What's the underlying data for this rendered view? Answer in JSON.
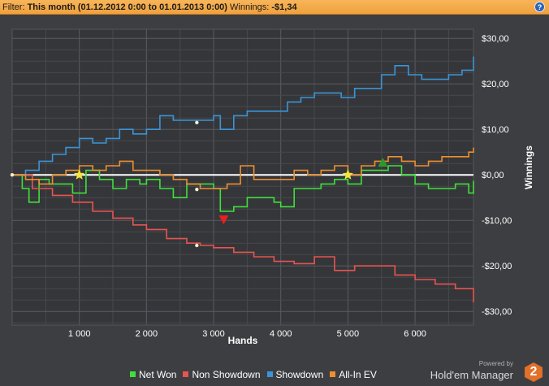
{
  "filter_bar": {
    "filter_label": "Filter:",
    "filter_value": "This month (01.12.2012 0:00 to 01.01.2013 0:00)",
    "winnings_label": "Winnings:",
    "winnings_value": "-$1,34",
    "help_icon": "?"
  },
  "chart_data": {
    "type": "line",
    "xlabel": "Hands",
    "ylabel": "Winnings",
    "xlim": [
      0,
      6870
    ],
    "ylim": [
      -33,
      32
    ],
    "x_ticks": [
      1000,
      2000,
      3000,
      4000,
      5000,
      6000
    ],
    "x_tick_labels": [
      "1 000",
      "2 000",
      "3 000",
      "4 000",
      "5 000",
      "6 000"
    ],
    "y_ticks": [
      30,
      20,
      10,
      0,
      -10,
      -20,
      -30
    ],
    "y_tick_labels": [
      "$30,00",
      "$20,00",
      "$10,00",
      "$0,00",
      "-$10,00",
      "-$20,00",
      "-$30,00"
    ],
    "grid": true,
    "legend_position": "bottom",
    "series": [
      {
        "name": "Net Won",
        "color": "#3fe03a",
        "x": [
          0,
          150,
          250,
          400,
          550,
          700,
          900,
          1100,
          1300,
          1500,
          1700,
          1900,
          2000,
          2200,
          2400,
          2600,
          2800,
          3000,
          3100,
          3300,
          3500,
          3700,
          3900,
          4000,
          4200,
          4400,
          4600,
          4800,
          5000,
          5200,
          5400,
          5600,
          5800,
          6000,
          6200,
          6400,
          6600,
          6800,
          6870
        ],
        "values": [
          0,
          -3,
          -6,
          -1,
          -2,
          -2,
          -4,
          1,
          -1,
          -3,
          -1,
          -2,
          -1,
          -3,
          -5,
          -2,
          -2,
          -3,
          -8,
          -7,
          -5,
          -5,
          -6,
          -7,
          -3,
          -3,
          -2,
          -1,
          -2,
          1,
          1,
          2,
          0,
          -2,
          -3,
          -3,
          -2,
          -4,
          -1.3
        ]
      },
      {
        "name": "Non Showdown",
        "color": "#e85450",
        "x": [
          0,
          300,
          600,
          900,
          1200,
          1500,
          1800,
          2000,
          2300,
          2600,
          2800,
          3000,
          3300,
          3600,
          3900,
          4200,
          4500,
          4800,
          5100,
          5400,
          5700,
          6000,
          6300,
          6600,
          6870
        ],
        "values": [
          0,
          -3,
          -4.5,
          -6,
          -8,
          -9.5,
          -11,
          -12,
          -14,
          -15,
          -15.5,
          -16,
          -17,
          -18,
          -19,
          -19.5,
          -18,
          -21,
          -20,
          -20,
          -22,
          -23,
          -24,
          -25,
          -28
        ]
      },
      {
        "name": "Showdown",
        "color": "#3a95d6",
        "x": [
          0,
          200,
          400,
          600,
          800,
          1000,
          1200,
          1400,
          1600,
          1800,
          2000,
          2200,
          2400,
          2600,
          2800,
          3000,
          3100,
          3300,
          3500,
          3700,
          3900,
          4100,
          4300,
          4500,
          4700,
          4900,
          5100,
          5300,
          5500,
          5700,
          5900,
          6100,
          6300,
          6500,
          6700,
          6870
        ],
        "values": [
          0,
          1,
          3,
          4.5,
          6,
          8,
          7,
          8,
          10,
          9,
          10,
          13,
          12,
          12,
          12,
          13,
          10,
          13,
          14,
          14,
          14,
          16,
          17,
          18,
          18,
          17,
          19,
          19,
          22,
          24,
          22,
          21,
          21,
          22,
          23,
          26
        ]
      },
      {
        "name": "All-In EV",
        "color": "#ee8f2e",
        "x": [
          0,
          200,
          400,
          600,
          800,
          1000,
          1200,
          1400,
          1600,
          1800,
          2000,
          2200,
          2400,
          2600,
          2800,
          3000,
          3200,
          3400,
          3600,
          3800,
          4000,
          4200,
          4400,
          4600,
          4800,
          5000,
          5200,
          5400,
          5600,
          5800,
          6000,
          6200,
          6400,
          6600,
          6800,
          6870
        ],
        "values": [
          0,
          -1,
          -2,
          0,
          1,
          2,
          1,
          2,
          3,
          1,
          1,
          0,
          -1,
          -2,
          -3,
          -3,
          -2,
          2,
          -1,
          -1,
          -1,
          1,
          0,
          1,
          2,
          0,
          2,
          3,
          4,
          3,
          2,
          3,
          4,
          4,
          5,
          6
        ]
      }
    ],
    "markers": [
      {
        "kind": "star",
        "x": 1000,
        "y": 0,
        "color": "#f5e43a"
      },
      {
        "kind": "star",
        "x": 5000,
        "y": 0,
        "color": "#f5e43a"
      },
      {
        "kind": "triangle-down",
        "x": 3150,
        "y": -9.8,
        "color": "#e8201f"
      },
      {
        "kind": "triangle-up",
        "x": 5520,
        "y": 2.7,
        "color": "#2b9a2b"
      },
      {
        "kind": "dot",
        "x": 2750,
        "y": 11.5,
        "color": "#f0f0d0"
      },
      {
        "kind": "dot",
        "x": 2750,
        "y": -3.2,
        "color": "#f0f0d0"
      },
      {
        "kind": "dot",
        "x": 2750,
        "y": -15.5,
        "color": "#f0f0d0"
      },
      {
        "kind": "dot",
        "x": 0,
        "y": 0,
        "color": "#f0f0d0"
      }
    ]
  },
  "branding": {
    "powered_by": "Powered by",
    "product_name": "Hold'em Manager",
    "logo_text": "2"
  }
}
